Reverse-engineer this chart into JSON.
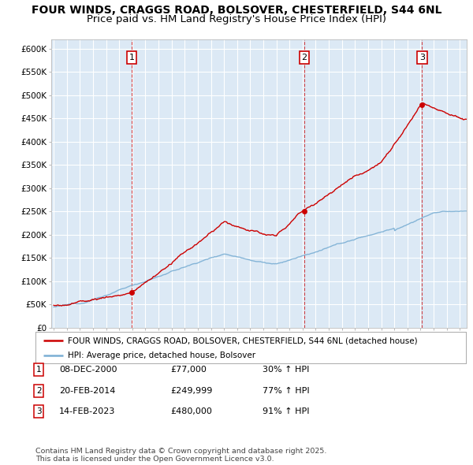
{
  "title1": "FOUR WINDS, CRAGGS ROAD, BOLSOVER, CHESTERFIELD, S44 6NL",
  "title2": "Price paid vs. HM Land Registry's House Price Index (HPI)",
  "ylim": [
    0,
    620000
  ],
  "yticks": [
    0,
    50000,
    100000,
    150000,
    200000,
    250000,
    300000,
    350000,
    400000,
    450000,
    500000,
    550000,
    600000
  ],
  "ytick_labels": [
    "£0",
    "£50K",
    "£100K",
    "£150K",
    "£200K",
    "£250K",
    "£300K",
    "£350K",
    "£400K",
    "£450K",
    "£500K",
    "£550K",
    "£600K"
  ],
  "xlim_start": 1994.8,
  "xlim_end": 2026.5,
  "background_color": "#ffffff",
  "plot_bg_color": "#dce9f5",
  "grid_color": "#ffffff",
  "sale_line_color": "#cc0000",
  "hpi_line_color": "#7bafd4",
  "sale_points": [
    {
      "date": 2000.94,
      "price": 77000,
      "label": "1"
    },
    {
      "date": 2014.13,
      "price": 249999,
      "label": "2"
    },
    {
      "date": 2023.12,
      "price": 480000,
      "label": "3"
    }
  ],
  "vline_color": "#cc0000",
  "legend_sale_label": "FOUR WINDS, CRAGGS ROAD, BOLSOVER, CHESTERFIELD, S44 6NL (detached house)",
  "legend_hpi_label": "HPI: Average price, detached house, Bolsover",
  "table_rows": [
    {
      "num": "1",
      "date": "08-DEC-2000",
      "price": "£77,000",
      "change": "30% ↑ HPI"
    },
    {
      "num": "2",
      "date": "20-FEB-2014",
      "price": "£249,999",
      "change": "77% ↑ HPI"
    },
    {
      "num": "3",
      "date": "14-FEB-2023",
      "price": "£480,000",
      "change": "91% ↑ HPI"
    }
  ],
  "footer": "Contains HM Land Registry data © Crown copyright and database right 2025.\nThis data is licensed under the Open Government Licence v3.0.",
  "title_fontsize": 10,
  "tick_fontsize": 7.5,
  "legend_fontsize": 7.5,
  "table_fontsize": 8
}
